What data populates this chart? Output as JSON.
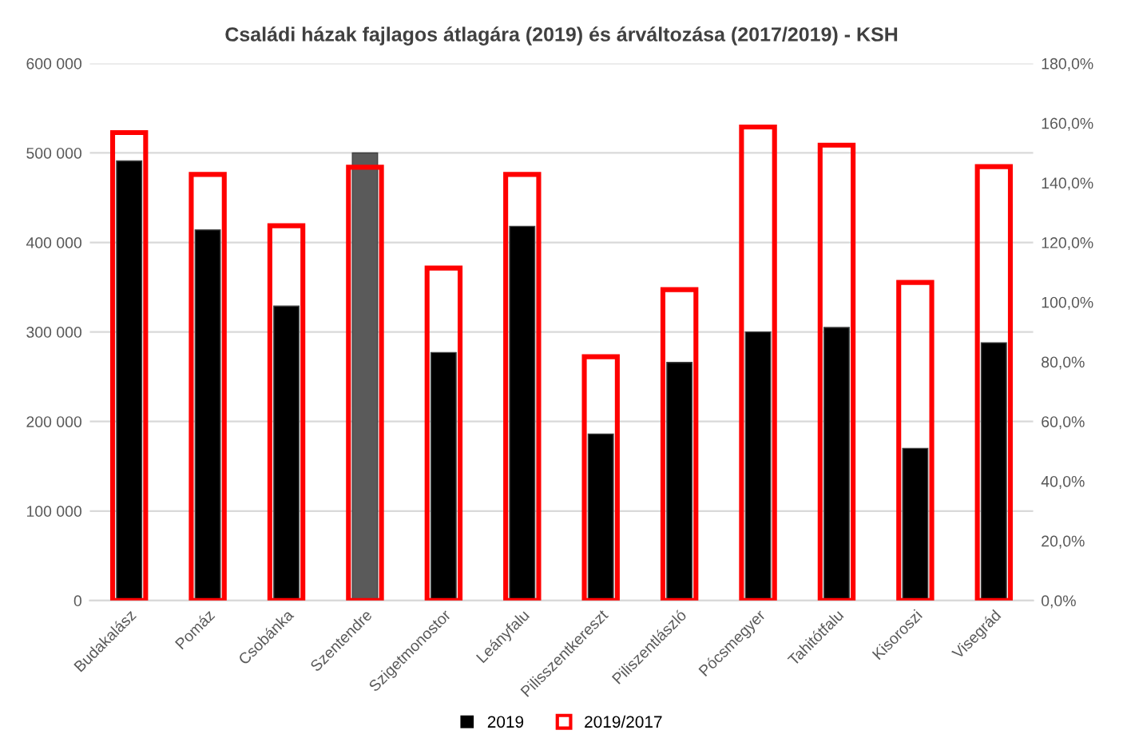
{
  "chart_data": {
    "type": "bar",
    "title": "Családi házak fajlagos átlagára (2019) és árváltozása (2017/2019) - KSH",
    "categories": [
      "Budakalász",
      "Pomáz",
      "Csobánka",
      "Szentendre",
      "Szigetmonostor",
      "Leányfalu",
      "Pilisszentkereszt",
      "Piliszentlászló",
      "Pócsmegyer",
      "Tahitótfalu",
      "Kisoroszi",
      "Visegrád"
    ],
    "series": [
      {
        "name": "2019",
        "color": "#000000",
        "colors": [
          "#000000",
          "#000000",
          "#000000",
          "#5a5a5a",
          "#000000",
          "#000000",
          "#000000",
          "#000000",
          "#000000",
          "#000000",
          "#000000",
          "#000000"
        ],
        "values": [
          491000,
          414000,
          329000,
          500000,
          277000,
          418000,
          186000,
          266000,
          300000,
          305000,
          170000,
          288000
        ]
      },
      {
        "name": "2019/2017",
        "color": "#ff0000",
        "axis": "y2",
        "values": [
          156.8,
          142.8,
          125.6,
          145.2,
          111.4,
          142.8,
          81.7,
          104.2,
          158.7,
          152.6,
          106.6,
          145.4
        ]
      }
    ],
    "ylim": [
      0,
      600000
    ],
    "yticks": [
      {
        "value": 0,
        "label": "0"
      },
      {
        "value": 100000,
        "label": "100 000"
      },
      {
        "value": 200000,
        "label": "200 000"
      },
      {
        "value": 300000,
        "label": "300 000"
      },
      {
        "value": 400000,
        "label": "400 000"
      },
      {
        "value": 500000,
        "label": "500 000"
      },
      {
        "value": 600000,
        "label": "600 000"
      }
    ],
    "y2lim": [
      0,
      180
    ],
    "y2ticks": [
      {
        "value": 0,
        "label": "0,0%"
      },
      {
        "value": 20,
        "label": "20,0%"
      },
      {
        "value": 40,
        "label": "40,0%"
      },
      {
        "value": 60,
        "label": "60,0%"
      },
      {
        "value": 80,
        "label": "80,0%"
      },
      {
        "value": 100,
        "label": "100,0%"
      },
      {
        "value": 120,
        "label": "120,0%"
      },
      {
        "value": 140,
        "label": "140,0%"
      },
      {
        "value": 160,
        "label": "160,0%"
      },
      {
        "value": 180,
        "label": "180,0%"
      }
    ],
    "grid": "y",
    "legend": "bottom"
  }
}
